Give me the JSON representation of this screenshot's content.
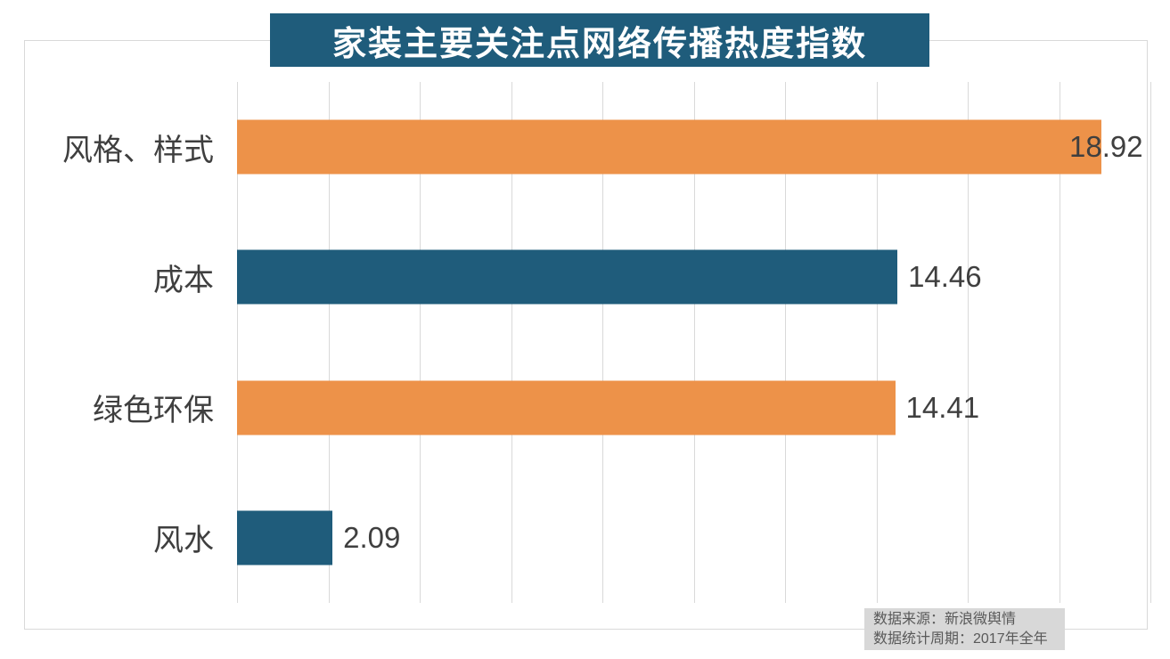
{
  "chart_data": {
    "type": "bar",
    "orientation": "horizontal",
    "title": "家装主要关注点网络传播热度指数",
    "categories": [
      "风格、样式",
      "成本",
      "绿色环保",
      "风水"
    ],
    "values": [
      18.92,
      14.46,
      14.41,
      2.09
    ],
    "value_labels": [
      "18.92",
      "14.46",
      "14.41",
      "2.09"
    ],
    "bar_colors": [
      "#ed9249",
      "#1f5c7b",
      "#ed9249",
      "#1f5c7b"
    ],
    "xlim": [
      0,
      20
    ],
    "gridline_step": 2,
    "grid": true,
    "legend": "none",
    "source_lines": [
      "数据来源：新浪微舆情",
      "数据统计周期：2017年全年"
    ]
  },
  "colors": {
    "title_background": "#1f5c7b",
    "bar_orange": "#ed9249",
    "bar_teal": "#1f5c7b",
    "label_text": "#3f3f3f",
    "grid_line": "#d9d9d9",
    "frame_border": "#d9d9d9",
    "source_background": "#d8d8d8",
    "source_text": "#595959",
    "title_text": "#ffffff"
  }
}
